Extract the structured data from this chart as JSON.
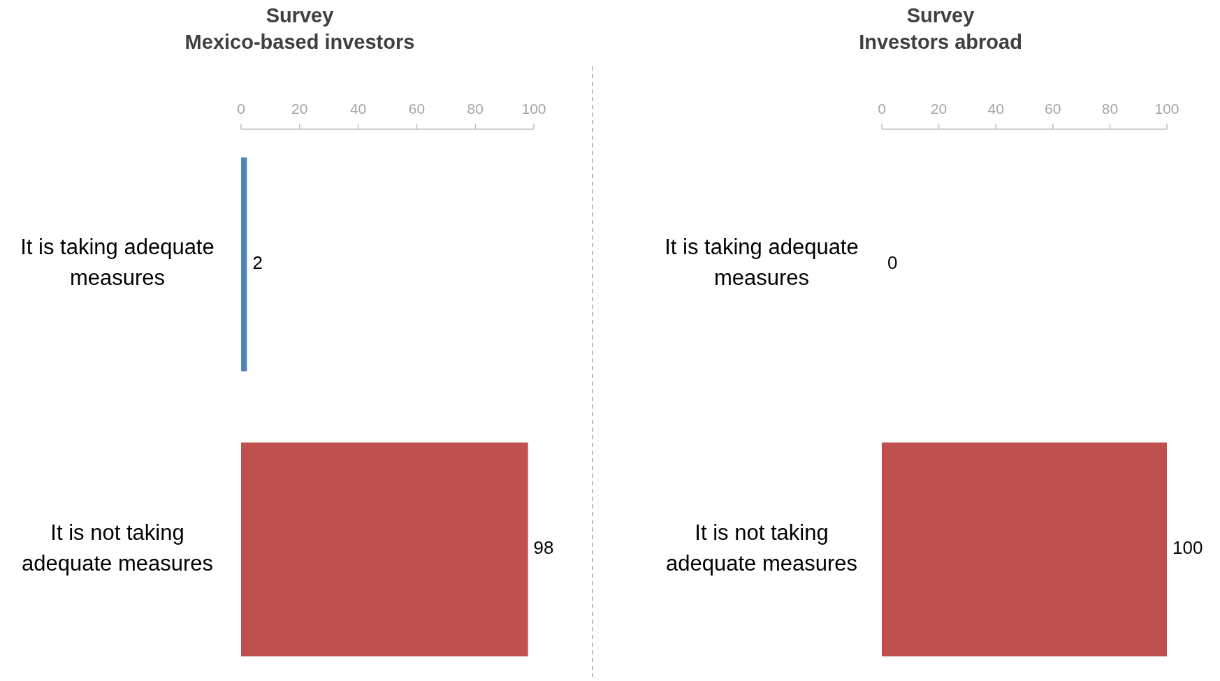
{
  "chart_data": [
    {
      "type": "bar",
      "orientation": "horizontal",
      "title": "Survey",
      "subtitle": "Mexico-based investors",
      "categories": [
        "It is taking adequate measures",
        "It is not taking adequate measures"
      ],
      "values": [
        2,
        98
      ],
      "colors": [
        "#4f81bd",
        "#c0504d"
      ],
      "xlim": [
        0,
        100
      ],
      "xticks": [
        0,
        20,
        40,
        60,
        80,
        100
      ],
      "data_labels": true,
      "grid": false
    },
    {
      "type": "bar",
      "orientation": "horizontal",
      "title": "Survey",
      "subtitle": "Investors abroad",
      "categories": [
        "It is taking adequate measures",
        "It is not taking adequate measures"
      ],
      "values": [
        0,
        100
      ],
      "colors": [
        "#4f81bd",
        "#c0504d"
      ],
      "xlim": [
        0,
        100
      ],
      "xticks": [
        0,
        20,
        40,
        60,
        80,
        100
      ],
      "data_labels": true,
      "grid": false
    }
  ]
}
